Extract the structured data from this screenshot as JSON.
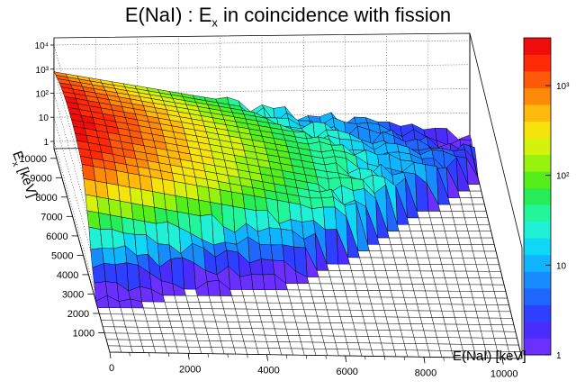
{
  "chart_data": {
    "type": "surface",
    "title_main": "E(NaI) : E",
    "title_sub": "x",
    "title_rest": " in coincidence with fission",
    "xlabel": "E(NaI) [keV]",
    "ylabel": "E",
    "ylabel_sub": "x",
    "ylabel_rest": " [keV]",
    "x_ticks": [
      "0",
      "2000",
      "4000",
      "6000",
      "8000",
      "10000"
    ],
    "y_ticks": [
      "1000",
      "2000",
      "3000",
      "4000",
      "5000",
      "6000",
      "7000",
      "8000",
      "9000",
      "10000"
    ],
    "z_ticks": [
      "1",
      "10",
      "10²",
      "10³",
      "10⁴"
    ],
    "colorbar_ticks": [
      "1",
      "10",
      "10²",
      "10³"
    ],
    "z_scale": "log",
    "xlim": [
      0,
      10500
    ],
    "ylim": [
      0,
      10500
    ],
    "colors": {
      "palette": [
        "#6a30ff",
        "#4b2cff",
        "#2f3fff",
        "#1f67ff",
        "#168cff",
        "#11b4ff",
        "#11d7f7",
        "#1ff0d6",
        "#22f59a",
        "#27ee58",
        "#55ee1a",
        "#97f20e",
        "#d6f20c",
        "#f6e30b",
        "#ffba0b",
        "#ff8a0a",
        "#ff5a09",
        "#ff2a08",
        "#f20d0d"
      ]
    }
  }
}
